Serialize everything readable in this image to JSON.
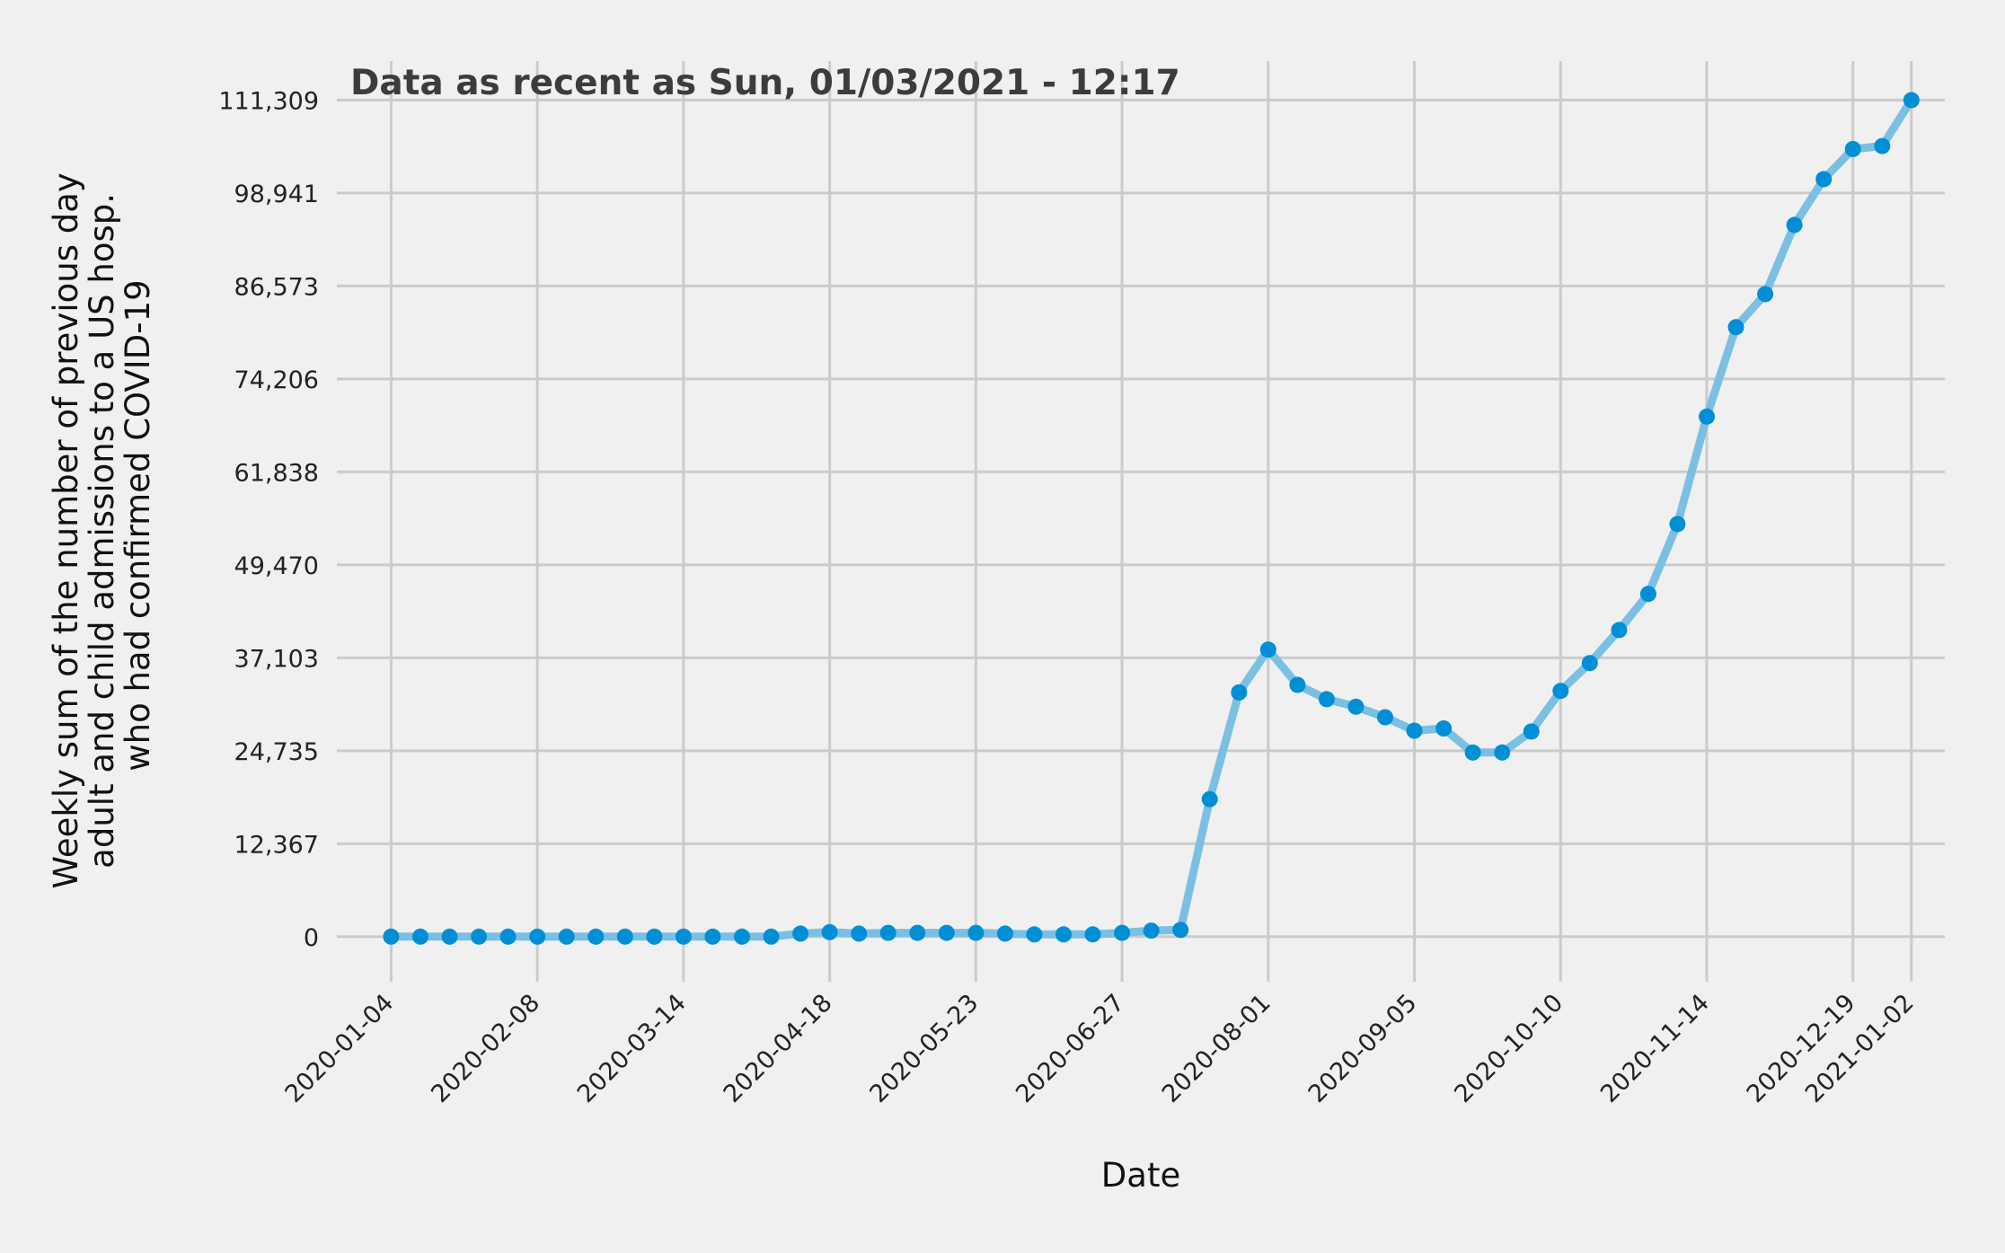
{
  "chart_data": {
    "type": "line",
    "title": "Data as recent as Sun, 01/03/2021 - 12:17",
    "xlabel": "Date",
    "ylabel": [
      "Weekly sum of the number of previous day",
      "adult and child admissions to a US hosp.",
      "who had confirmed COVID-19"
    ],
    "x_ticks": [
      "2020-01-04",
      "2020-02-08",
      "2020-03-14",
      "2020-04-18",
      "2020-05-23",
      "2020-06-27",
      "2020-08-01",
      "2020-09-05",
      "2020-10-10",
      "2020-11-14",
      "2020-12-19",
      "2021-01-02"
    ],
    "y_ticks": [
      "0",
      "12,367",
      "24,735",
      "37,103",
      "49,470",
      "61,838",
      "74,206",
      "86,573",
      "98,941",
      "111,309"
    ],
    "ylim": [
      -6000,
      116500
    ],
    "xlim": [
      "2019-12-22",
      "2021-01-10"
    ],
    "grid": true,
    "line_color": "#7bbfe3",
    "marker_color": "#008fd5",
    "series": [
      {
        "x": [
          "2020-01-04",
          "2020-01-11",
          "2020-01-18",
          "2020-01-25",
          "2020-02-01",
          "2020-02-08",
          "2020-02-15",
          "2020-02-22",
          "2020-02-29",
          "2020-03-07",
          "2020-03-14",
          "2020-03-21",
          "2020-03-28",
          "2020-04-04",
          "2020-04-11",
          "2020-04-18",
          "2020-04-25",
          "2020-05-02",
          "2020-05-09",
          "2020-05-16",
          "2020-05-23",
          "2020-05-30",
          "2020-06-06",
          "2020-06-13",
          "2020-06-20",
          "2020-06-27",
          "2020-07-04",
          "2020-07-11",
          "2020-07-18",
          "2020-07-25",
          "2020-08-01",
          "2020-08-08",
          "2020-08-15",
          "2020-08-22",
          "2020-08-29",
          "2020-09-05",
          "2020-09-12",
          "2020-09-19",
          "2020-09-26",
          "2020-10-03",
          "2020-10-10",
          "2020-10-17",
          "2020-10-24",
          "2020-10-31",
          "2020-11-07",
          "2020-11-14",
          "2020-11-21",
          "2020-11-28",
          "2020-12-05",
          "2020-12-12",
          "2020-12-19",
          "2020-12-26",
          "2021-01-02"
        ],
        "values": [
          0,
          0,
          0,
          0,
          0,
          0,
          0,
          0,
          0,
          0,
          0,
          0,
          0,
          0,
          400,
          600,
          400,
          500,
          500,
          500,
          500,
          400,
          300,
          300,
          300,
          500,
          800,
          900,
          18300,
          32500,
          38200,
          33500,
          31600,
          30600,
          29200,
          27400,
          27700,
          24500,
          24500,
          27300,
          32700,
          36400,
          40800,
          45600,
          54900,
          69200,
          81100,
          85500,
          94700,
          100800,
          104800,
          105200,
          111309
        ]
      }
    ]
  }
}
